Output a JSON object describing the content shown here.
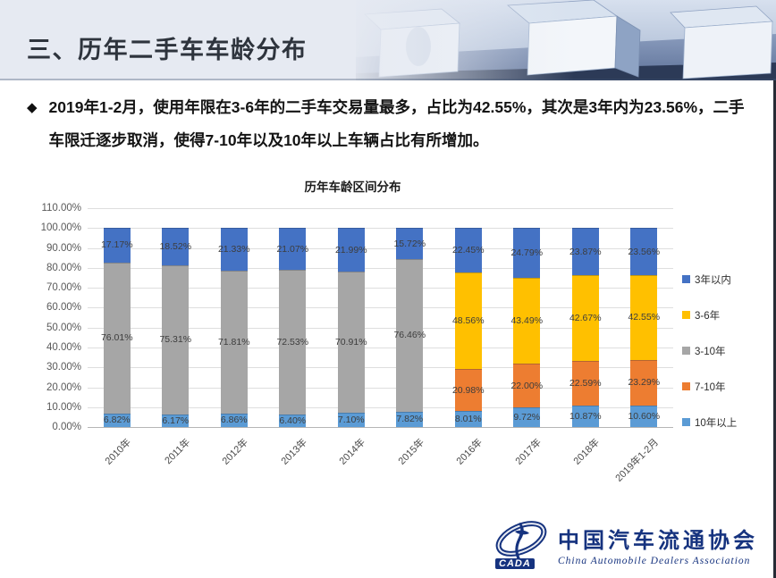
{
  "slide": {
    "header_title": "三、历年二手车车龄分布",
    "bullet_symbol": "◆",
    "bullet_text": "2019年1-2月，使用年限在3-6年的二手车交易量最多，占比为42.55%，其次是3年内为23.56%，二手车限迁逐步取消，使得7-10年以及10年以上车辆占比有所增加。"
  },
  "chart_data": {
    "type": "bar",
    "stacked": true,
    "title": "历年车龄区间分布",
    "categories": [
      "2010年",
      "2011年",
      "2012年",
      "2013年",
      "2014年",
      "2015年",
      "2016年",
      "2017年",
      "2018年",
      "2019年1-2月"
    ],
    "series": [
      {
        "name": "3年以内",
        "color": "#4472c4",
        "values": [
          17.17,
          18.52,
          21.33,
          21.07,
          21.99,
          15.72,
          22.45,
          24.79,
          23.87,
          23.56
        ]
      },
      {
        "name": "3-6年",
        "color": "#ffc000",
        "values": [
          null,
          null,
          null,
          null,
          null,
          null,
          48.56,
          43.49,
          42.67,
          42.55
        ]
      },
      {
        "name": "3-10年",
        "color": "#a6a6a6",
        "values": [
          76.01,
          75.31,
          71.81,
          72.53,
          70.91,
          76.46,
          null,
          null,
          null,
          null
        ]
      },
      {
        "name": "7-10年",
        "color": "#ed7d31",
        "values": [
          null,
          null,
          null,
          null,
          null,
          null,
          20.98,
          22.0,
          22.59,
          23.29
        ]
      },
      {
        "name": "10年以上",
        "color": "#5b9bd5",
        "values": [
          6.82,
          6.17,
          6.86,
          6.4,
          7.1,
          7.82,
          8.01,
          9.72,
          10.87,
          10.6
        ]
      }
    ],
    "ylim": [
      0,
      110
    ],
    "ytick_labels": [
      "110.00%",
      "100.00%",
      "90.00%",
      "80.00%",
      "70.00%",
      "60.00%",
      "50.00%",
      "40.00%",
      "30.00%",
      "20.00%",
      "10.00%",
      "0.00%"
    ],
    "label_suffix": "%",
    "grid": true,
    "legend_position": "right"
  },
  "logo": {
    "acronym": "CADA",
    "name_cn": "中国汽车流通协会",
    "name_en": "China Automobile Dealers Association"
  }
}
